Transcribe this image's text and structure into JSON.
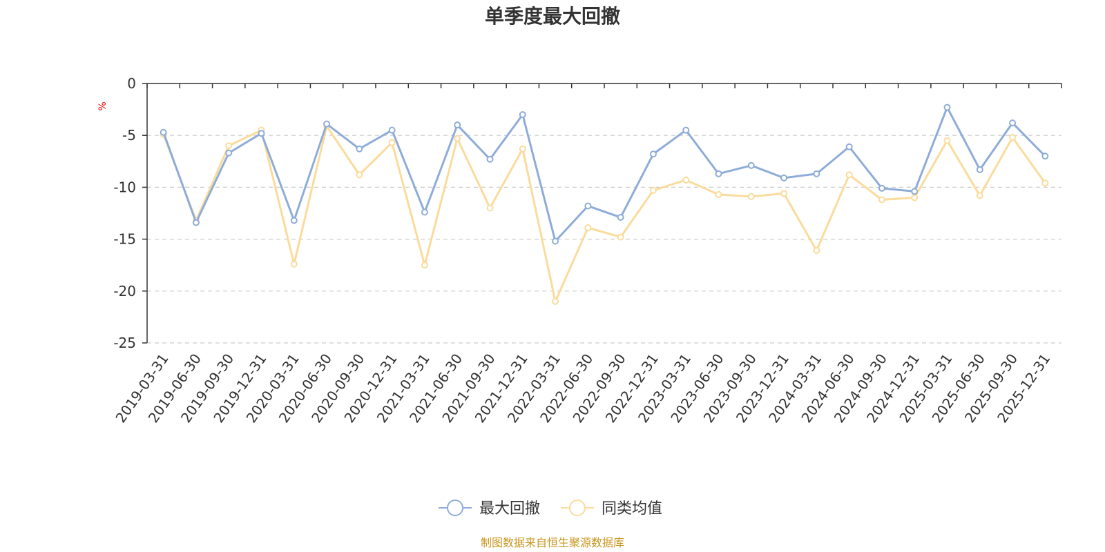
{
  "chart_data": {
    "type": "line",
    "title": "单季度最大回撤",
    "ylabel": "%",
    "ylim": [
      -25,
      0
    ],
    "yticks": [
      0,
      -5,
      -10,
      -15,
      -20,
      -25
    ],
    "grid": true,
    "legend_position": "bottom",
    "categories": [
      "2019-03-31",
      "2019-06-30",
      "2019-09-30",
      "2019-12-31",
      "2020-03-31",
      "2020-06-30",
      "2020-09-30",
      "2020-12-31",
      "2021-03-31",
      "2021-06-30",
      "2021-09-30",
      "2021-12-31",
      "2022-03-31",
      "2022-06-30",
      "2022-09-30",
      "2022-12-31",
      "2023-03-31",
      "2023-06-30",
      "2023-09-30",
      "2023-12-31",
      "2024-03-31",
      "2024-06-30",
      "2024-09-30",
      "2024-12-31",
      "2025-03-31",
      "2025-06-30",
      "2025-09-30",
      "2025-12-31"
    ],
    "series": [
      {
        "name": "最大回撤",
        "color": "#8eacd8",
        "values": [
          -4.7,
          -13.4,
          -6.7,
          -4.8,
          -13.2,
          -3.9,
          -6.3,
          -4.5,
          -12.4,
          -4.0,
          -7.3,
          -3.0,
          -15.2,
          -11.8,
          -12.9,
          -6.8,
          -4.5,
          -8.7,
          -7.9,
          -9.1,
          -8.7,
          -6.1,
          -10.1,
          -10.4,
          -2.3,
          -8.3,
          -3.8,
          -7.0
        ]
      },
      {
        "name": "同类均值",
        "color": "#fbdb9b",
        "values": [
          -4.9,
          -13.2,
          -6.0,
          -4.5,
          -17.4,
          -4.1,
          -8.8,
          -5.7,
          -17.5,
          -5.3,
          -12.0,
          -6.3,
          -21.0,
          -13.9,
          -14.8,
          -10.3,
          -9.3,
          -10.7,
          -10.9,
          -10.6,
          -16.1,
          -8.8,
          -11.2,
          -11.0,
          -5.5,
          -10.8,
          -5.2,
          -9.6
        ]
      }
    ]
  },
  "source_note": "制图数据来自恒生聚源数据库"
}
